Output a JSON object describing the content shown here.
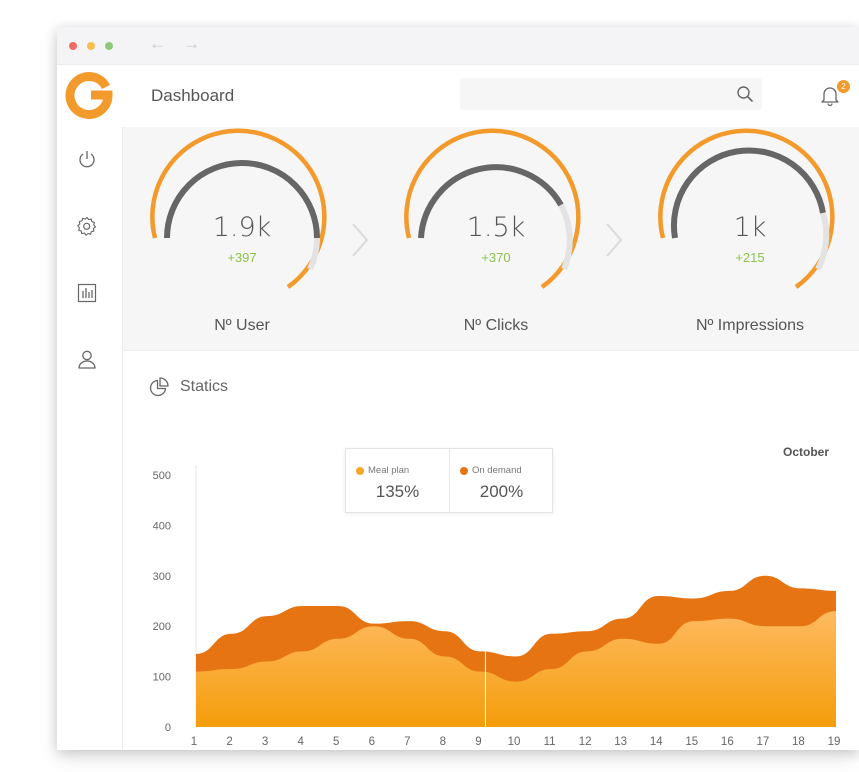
{
  "header": {
    "title": "Dashboard",
    "notification_count": "2"
  },
  "sidebar": {
    "items": [
      {
        "icon": "power-icon"
      },
      {
        "icon": "gear-icon"
      },
      {
        "icon": "bar-chart-icon"
      },
      {
        "icon": "user-icon"
      }
    ]
  },
  "stats": [
    {
      "value": "1.9k",
      "delta": "+397",
      "label": "Nº User"
    },
    {
      "value": "1.5k",
      "delta": "+370",
      "label": "Nº Clicks"
    },
    {
      "value": "1k",
      "delta": "+215",
      "label": "Nº Impressions"
    }
  ],
  "statics": {
    "title": "Statics",
    "month": "October",
    "tooltip": {
      "meal_plan_label": "Meal plan",
      "meal_plan_value": "135%",
      "on_demand_label": "On demand",
      "on_demand_value": "200%"
    }
  },
  "colors": {
    "accent": "#f39a2d",
    "meal_plan": "#fbc02d",
    "on_demand": "#e67412",
    "positive": "#8bc34a"
  },
  "chart_data": {
    "type": "area",
    "x": [
      1,
      2,
      3,
      4,
      5,
      6,
      7,
      8,
      9,
      10,
      11,
      12,
      13,
      14,
      15,
      16,
      17,
      18,
      19
    ],
    "ylim": [
      0,
      500
    ],
    "yticks": [
      0,
      100,
      200,
      300,
      400,
      500
    ],
    "series": [
      {
        "name": "On demand",
        "values": [
          145,
          185,
          220,
          240,
          240,
          205,
          210,
          190,
          150,
          140,
          185,
          190,
          215,
          260,
          255,
          270,
          300,
          275,
          270
        ]
      },
      {
        "name": "Meal plan",
        "values": [
          110,
          115,
          130,
          150,
          175,
          200,
          175,
          140,
          110,
          90,
          115,
          150,
          175,
          165,
          210,
          215,
          200,
          200,
          230
        ]
      }
    ]
  }
}
